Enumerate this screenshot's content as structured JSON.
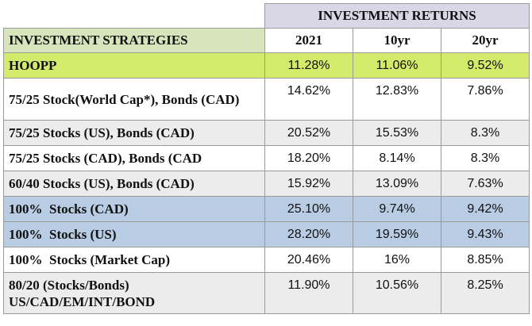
{
  "table": {
    "group_header": "INVESTMENT RETURNS",
    "strategy_header": "INVESTMENT STRATEGIES",
    "columns": [
      "2021",
      "10yr",
      "20yr"
    ],
    "rows": [
      {
        "strategy": "HOOPP",
        "values": [
          "11.28%",
          "11.06%",
          "9.52%"
        ],
        "highlight": "#d4ea6b"
      },
      {
        "strategy": "75/25 Stock(World Cap*), Bonds (CAD)",
        "values": [
          "14.62%",
          "12.83%",
          "7.86%"
        ],
        "highlight": "#ffffff"
      },
      {
        "strategy": "75/25 Stocks (US), Bonds (CAD)",
        "values": [
          "20.52%",
          "15.53%",
          "8.3%"
        ],
        "highlight": "#ececec"
      },
      {
        "strategy": "75/25 Stocks (CAD), Bonds (CAD",
        "values": [
          "18.20%",
          "8.14%",
          "8.3%"
        ],
        "highlight": "#ffffff"
      },
      {
        "strategy": "60/40 Stocks (US), Bonds (CAD)",
        "values": [
          "15.92%",
          "13.09%",
          "7.63%"
        ],
        "highlight": "#ececec"
      },
      {
        "strategy": "100%  Stocks (CAD)",
        "values": [
          "25.10%",
          "9.74%",
          "9.42%"
        ],
        "highlight": "#b8cce4"
      },
      {
        "strategy": "100%  Stocks (US)",
        "values": [
          "28.20%",
          "19.59%",
          "9.43%"
        ],
        "highlight": "#b8cce4"
      },
      {
        "strategy": "100%  Stocks (Market Cap)",
        "values": [
          "20.46%",
          "16%",
          "8.85%"
        ],
        "highlight": "#ffffff"
      },
      {
        "strategy": "80/20 (Stocks/Bonds) US/CAD/EM/INT/BOND",
        "values": [
          "11.90%",
          "10.56%",
          "8.25%"
        ],
        "highlight": "#ececec"
      }
    ]
  }
}
